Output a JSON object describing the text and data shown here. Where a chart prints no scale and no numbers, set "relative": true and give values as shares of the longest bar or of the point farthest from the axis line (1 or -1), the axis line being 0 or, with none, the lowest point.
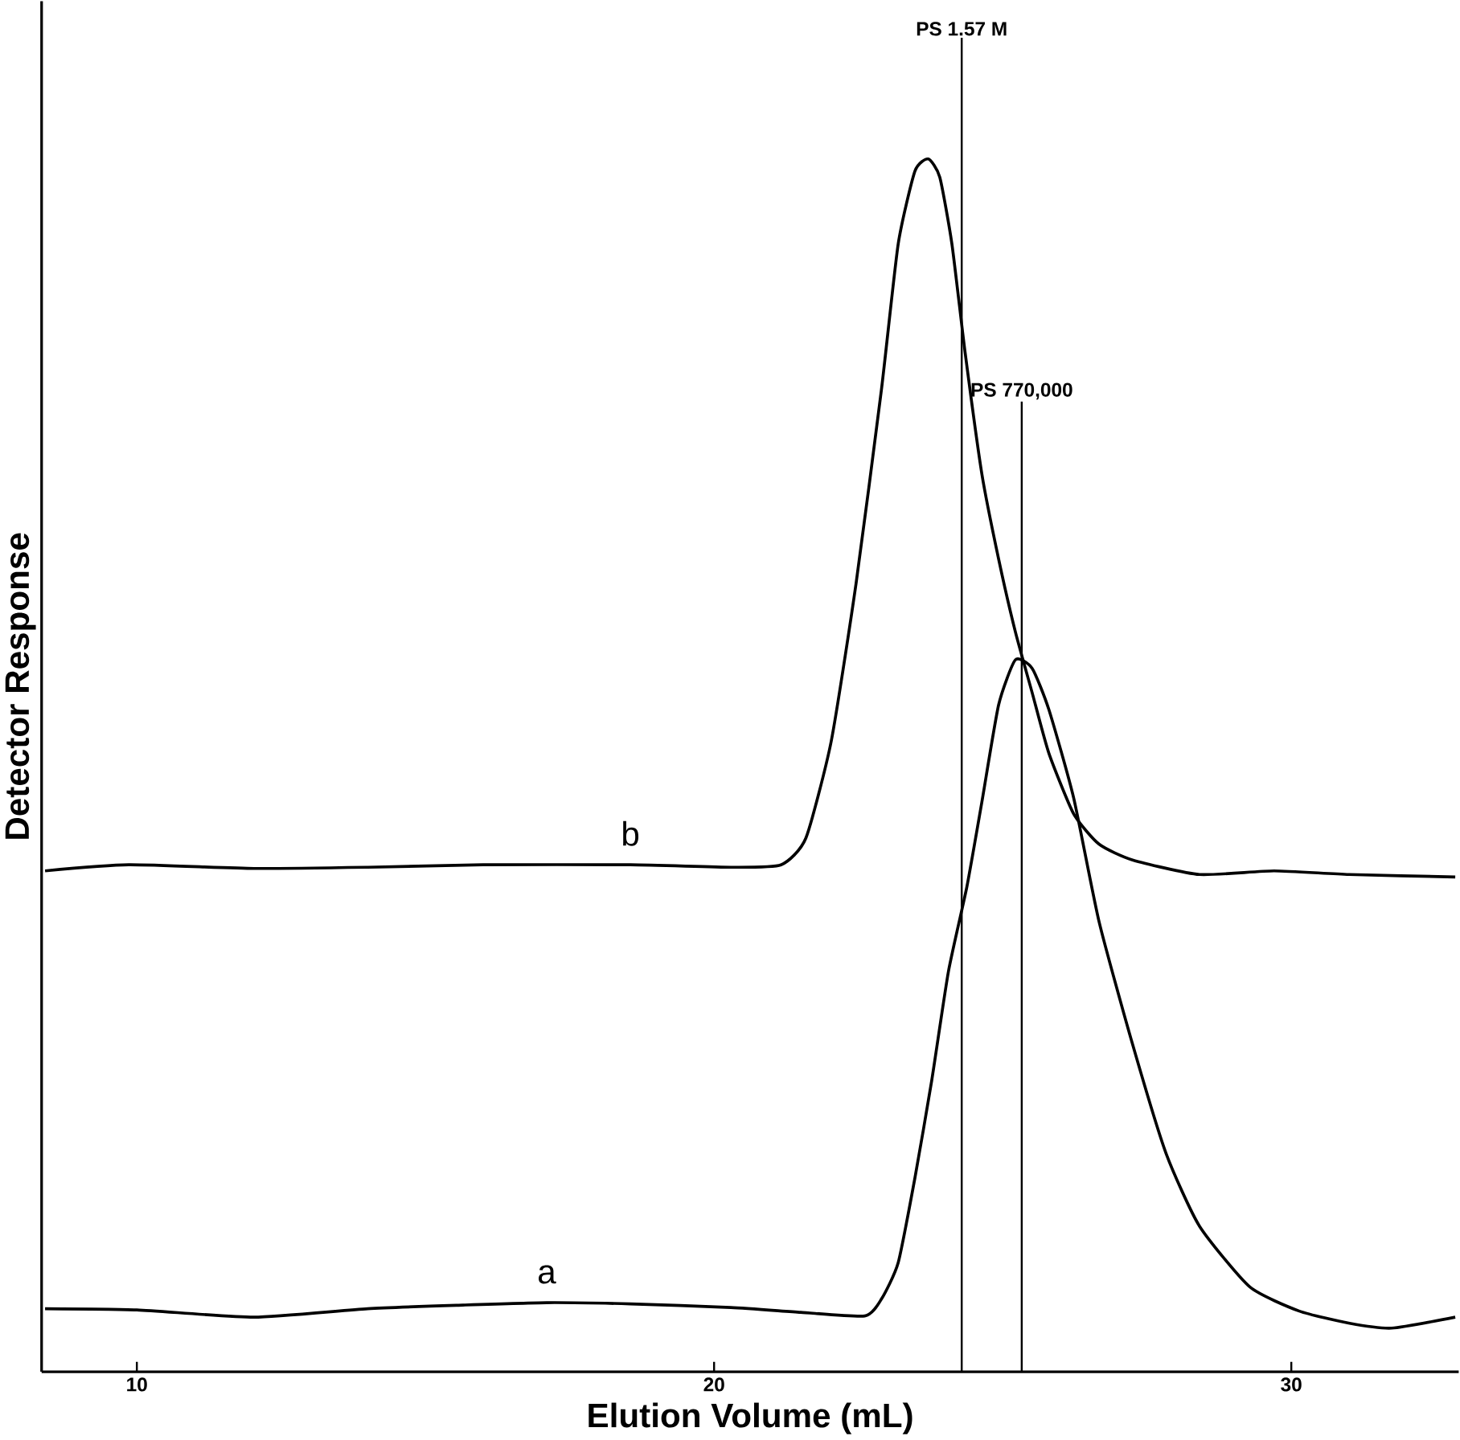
{
  "chart_data": {
    "type": "line",
    "relative": true,
    "xlabel": "Elution Volume (mL)",
    "ylabel": "Detector Response",
    "xlim": [
      8.35,
      32.9
    ],
    "xticks": [
      10,
      20,
      30
    ],
    "tick_labels": "x",
    "series": [
      {
        "name": "a",
        "color": "#000000",
        "x": [
          8.41,
          10.0,
          12.03,
          14.0,
          15.65,
          17.1,
          18.55,
          20.29,
          21.5,
          22.61,
          22.9,
          23.19,
          23.48,
          23.77,
          24.06,
          24.38,
          24.64,
          24.93,
          25.22,
          25.51,
          25.8,
          26.23,
          26.67,
          27.25,
          27.83,
          28.41,
          29.28,
          30.14,
          31.01,
          31.74,
          32.84
        ],
        "values": [
          0.052,
          0.051,
          0.045,
          0.052,
          0.055,
          0.057,
          0.056,
          0.053,
          0.049,
          0.046,
          0.06,
          0.09,
          0.16,
          0.24,
          0.33,
          0.4,
          0.47,
          0.55,
          0.587,
          0.58,
          0.546,
          0.473,
          0.371,
          0.27,
          0.18,
          0.12,
          0.07,
          0.05,
          0.04,
          0.036,
          0.045
        ]
      },
      {
        "name": "b",
        "color": "#000000",
        "x": [
          8.41,
          9.86,
          12.03,
          14.0,
          16.0,
          18.55,
          20.29,
          21.16,
          21.59,
          22.03,
          22.46,
          22.9,
          23.19,
          23.48,
          23.71,
          23.91,
          24.12,
          24.35,
          24.64,
          24.93,
          25.22,
          25.51,
          25.8,
          26.23,
          26.67,
          27.25,
          28.41,
          29.7,
          31.0,
          32.84
        ],
        "values": [
          0.413,
          0.418,
          0.415,
          0.416,
          0.418,
          0.418,
          0.416,
          0.418,
          0.44,
          0.52,
          0.65,
          0.81,
          0.93,
          0.99,
          1.0,
          0.985,
          0.93,
          0.84,
          0.74,
          0.67,
          0.61,
          0.56,
          0.51,
          0.46,
          0.435,
          0.422,
          0.41,
          0.413,
          0.41,
          0.408
        ]
      }
    ],
    "ref_lines": [
      {
        "axis": "x",
        "value": 24.29,
        "label": "PS 1.57 M"
      },
      {
        "axis": "x",
        "value": 25.33,
        "label": "PS 770,000"
      }
    ]
  }
}
